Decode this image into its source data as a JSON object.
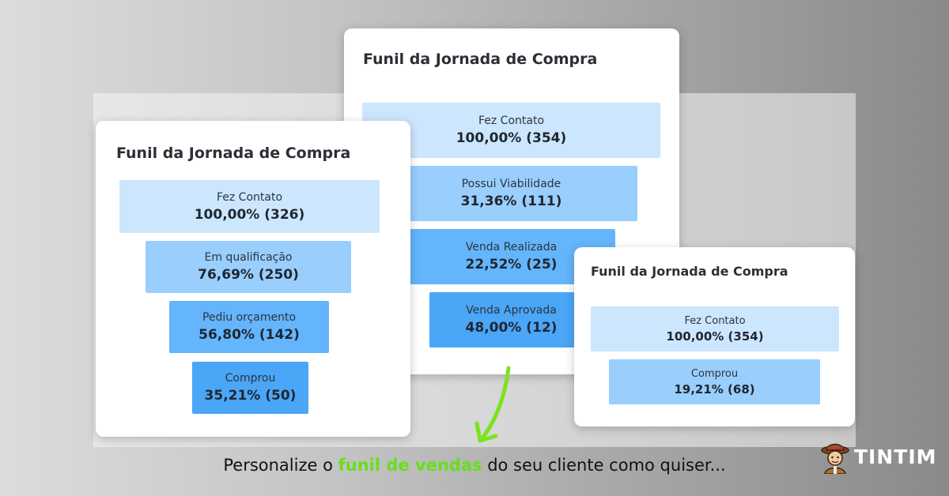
{
  "cards": {
    "left": {
      "title": "Funil da Jornada de Compra",
      "stages": [
        {
          "label": "Fez Contato",
          "value": "100,00% (326)"
        },
        {
          "label": "Em qualificação",
          "value": "76,69% (250)"
        },
        {
          "label": "Pediu orçamento",
          "value": "56,80% (142)"
        },
        {
          "label": "Comprou",
          "value": "35,21% (50)"
        }
      ]
    },
    "middle": {
      "title": "Funil da Jornada de Compra",
      "stages": [
        {
          "label": "Fez Contato",
          "value": "100,00% (354)"
        },
        {
          "label": "Possui Viabilidade",
          "value": "31,36% (111)"
        },
        {
          "label": "Venda Realizada",
          "value": "22,52% (25)"
        },
        {
          "label": "Venda Aprovada",
          "value": "48,00% (12)"
        }
      ]
    },
    "right": {
      "title": "Funil da Jornada de Compra",
      "stages": [
        {
          "label": "Fez Contato",
          "value": "100,00% (354)"
        },
        {
          "label": "Comprou",
          "value": "19,21% (68)"
        }
      ]
    }
  },
  "caption": {
    "before": "Personalize o ",
    "highlight": "funil de vendas",
    "after": " do seu cliente como quiser..."
  },
  "brand": {
    "name": "TINTIM",
    "icon": "detective-mascot-icon"
  },
  "colors": {
    "stage_1": "#cce6fd",
    "stage_2": "#99cefd",
    "stage_3": "#64b5fb",
    "stage_4": "#4aa6f6",
    "highlight": "#66e01c",
    "arrow": "#7be31f"
  }
}
